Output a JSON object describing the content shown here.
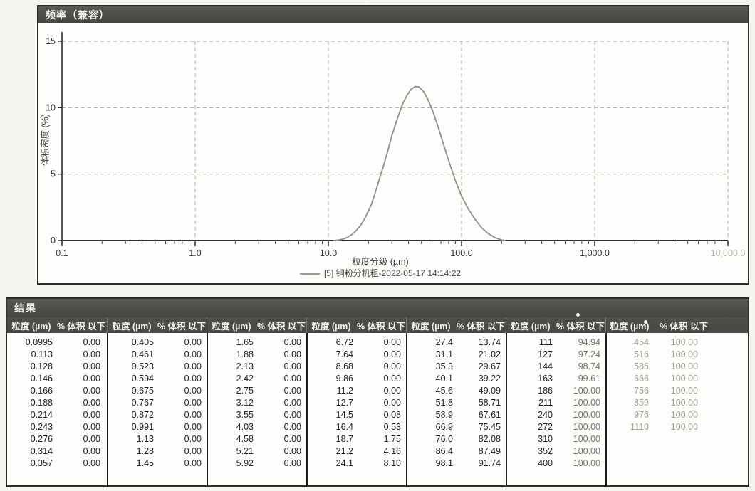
{
  "chart_panel": {
    "title": "频率（兼容）"
  },
  "chart_data": {
    "type": "line",
    "title": "频率（兼容）",
    "xlabel": "粒度分级 (µm)",
    "ylabel": "体积密度 (%)",
    "x_scale": "log",
    "xlim": [
      0.1,
      10000
    ],
    "ylim": [
      0,
      15
    ],
    "y_ticks": [
      0,
      5,
      10,
      15
    ],
    "x_tick_values": [
      0.1,
      1,
      10,
      100,
      1000,
      10000
    ],
    "x_tick_labels": [
      "0.1",
      "1.0",
      "10.0",
      "100.0",
      "1,000.0",
      "10,000.0"
    ],
    "grid": "dashed",
    "legend": "[5] 铜粉分机粗-2022-05-17 14:14:22",
    "legend_position": "bottom",
    "series": [
      {
        "name": "[5] 铜粉分机粗-2022-05-17 14:14:22",
        "color": "#8e8e88",
        "points": [
          [
            11,
            0.0
          ],
          [
            12,
            0.05
          ],
          [
            13,
            0.12
          ],
          [
            14,
            0.25
          ],
          [
            15,
            0.45
          ],
          [
            16,
            0.7
          ],
          [
            17.5,
            1.15
          ],
          [
            19,
            1.75
          ],
          [
            21,
            2.7
          ],
          [
            23,
            3.9
          ],
          [
            25,
            5.1
          ],
          [
            27.5,
            6.5
          ],
          [
            30,
            7.9
          ],
          [
            33,
            9.2
          ],
          [
            36,
            10.25
          ],
          [
            39,
            10.95
          ],
          [
            42,
            11.4
          ],
          [
            45,
            11.6
          ],
          [
            48,
            11.55
          ],
          [
            52,
            11.2
          ],
          [
            56,
            10.6
          ],
          [
            61,
            9.7
          ],
          [
            67,
            8.5
          ],
          [
            74,
            7.1
          ],
          [
            82,
            5.7
          ],
          [
            90,
            4.5
          ],
          [
            100,
            3.35
          ],
          [
            112,
            2.4
          ],
          [
            126,
            1.6
          ],
          [
            142,
            0.95
          ],
          [
            160,
            0.5
          ],
          [
            180,
            0.2
          ],
          [
            200,
            0.05
          ],
          [
            212,
            0.0
          ]
        ]
      }
    ]
  },
  "results": {
    "title": "结果",
    "col_size_label": "粒度 (µm)",
    "col_pct_label": "% 体积 以下",
    "groups": [
      {
        "rows": [
          [
            "0.0995",
            "0.00"
          ],
          [
            "0.113",
            "0.00"
          ],
          [
            "0.128",
            "0.00"
          ],
          [
            "0.146",
            "0.00"
          ],
          [
            "0.166",
            "0.00"
          ],
          [
            "0.188",
            "0.00"
          ],
          [
            "0.214",
            "0.00"
          ],
          [
            "0.243",
            "0.00"
          ],
          [
            "0.276",
            "0.00"
          ],
          [
            "0.314",
            "0.00"
          ],
          [
            "0.357",
            "0.00"
          ]
        ]
      },
      {
        "rows": [
          [
            "0.405",
            "0.00"
          ],
          [
            "0.461",
            "0.00"
          ],
          [
            "0.523",
            "0.00"
          ],
          [
            "0.594",
            "0.00"
          ],
          [
            "0.675",
            "0.00"
          ],
          [
            "0.767",
            "0.00"
          ],
          [
            "0.872",
            "0.00"
          ],
          [
            "0.991",
            "0.00"
          ],
          [
            "1.13",
            "0.00"
          ],
          [
            "1.28",
            "0.00"
          ],
          [
            "1.45",
            "0.00"
          ]
        ]
      },
      {
        "rows": [
          [
            "1.65",
            "0.00"
          ],
          [
            "1.88",
            "0.00"
          ],
          [
            "2.13",
            "0.00"
          ],
          [
            "2.42",
            "0.00"
          ],
          [
            "2.75",
            "0.00"
          ],
          [
            "3.12",
            "0.00"
          ],
          [
            "3.55",
            "0.00"
          ],
          [
            "4.03",
            "0.00"
          ],
          [
            "4.58",
            "0.00"
          ],
          [
            "5.21",
            "0.00"
          ],
          [
            "5.92",
            "0.00"
          ]
        ]
      },
      {
        "rows": [
          [
            "6.72",
            "0.00"
          ],
          [
            "7.64",
            "0.00"
          ],
          [
            "8.68",
            "0.00"
          ],
          [
            "9.86",
            "0.00"
          ],
          [
            "11.2",
            "0.00"
          ],
          [
            "12.7",
            "0.00"
          ],
          [
            "14.5",
            "0.08"
          ],
          [
            "16.4",
            "0.53"
          ],
          [
            "18.7",
            "1.75"
          ],
          [
            "21.2",
            "4.16"
          ],
          [
            "24.1",
            "8.10"
          ]
        ]
      },
      {
        "rows": [
          [
            "27.4",
            "13.74"
          ],
          [
            "31.1",
            "21.02"
          ],
          [
            "35.3",
            "29.67"
          ],
          [
            "40.1",
            "39.22"
          ],
          [
            "45.6",
            "49.09"
          ],
          [
            "51.8",
            "58.71"
          ],
          [
            "58.9",
            "67.61"
          ],
          [
            "66.9",
            "75.45"
          ],
          [
            "76.0",
            "82.08"
          ],
          [
            "86.4",
            "87.49"
          ],
          [
            "98.1",
            "91.74"
          ]
        ]
      },
      {
        "pct_faded": true,
        "rows": [
          [
            "111",
            "94.94"
          ],
          [
            "127",
            "97.24"
          ],
          [
            "144",
            "98.74"
          ],
          [
            "163",
            "99.61"
          ],
          [
            "186",
            "100.00"
          ],
          [
            "211",
            "100.00"
          ],
          [
            "240",
            "100.00"
          ],
          [
            "272",
            "100.00"
          ],
          [
            "310",
            "100.00"
          ],
          [
            "352",
            "100.00"
          ],
          [
            "400",
            "100.00"
          ]
        ]
      },
      {
        "faded": true,
        "rows": [
          [
            "454",
            "100.00"
          ],
          [
            "516",
            "100.00"
          ],
          [
            "586",
            "100.00"
          ],
          [
            "666",
            "100.00"
          ],
          [
            "756",
            "100.00"
          ],
          [
            "859",
            "100.00"
          ],
          [
            "976",
            "100.00"
          ],
          [
            "1110",
            "100.00"
          ]
        ]
      }
    ]
  }
}
